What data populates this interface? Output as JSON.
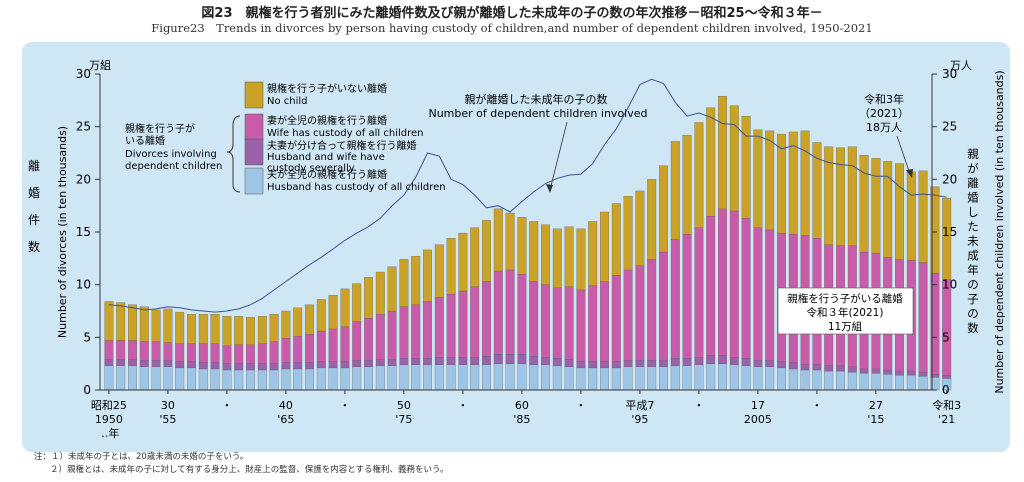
{
  "title_jp": "図23　親権を行う者別にみた離婚件数及び親が離婚した未成年の子の数の年次推移－昭和25～令和３年－",
  "title_en": "Figure23　Trends in divorces by person having custody of children,and number of dependent children involved, 1950-2021",
  "notes": [
    "注：１）未成年の子とは、20歳未満の未婚の子をいう。",
    "２）親権とは、未成年の子に対して有する身分上、財産上の監督、保護を内容とする権利、義務をいう。"
  ],
  "colors": {
    "no_child": "#c9a227",
    "wife": "#c85ca8",
    "both": "#9a62a8",
    "husband": "#9ec4e6",
    "line": "#3a5590",
    "panel": "#cfe6f4"
  },
  "chart_data": {
    "type": "bar",
    "stacked": true,
    "grid": false,
    "years": [
      1950,
      1951,
      1952,
      1953,
      1954,
      1955,
      1956,
      1957,
      1958,
      1959,
      1960,
      1961,
      1962,
      1963,
      1964,
      1965,
      1966,
      1967,
      1968,
      1969,
      1970,
      1971,
      1972,
      1973,
      1974,
      1975,
      1976,
      1977,
      1978,
      1979,
      1980,
      1981,
      1982,
      1983,
      1984,
      1985,
      1986,
      1987,
      1988,
      1989,
      1990,
      1991,
      1992,
      1993,
      1994,
      1995,
      1996,
      1997,
      1998,
      1999,
      2000,
      2001,
      2002,
      2003,
      2004,
      2005,
      2006,
      2007,
      2008,
      2009,
      2010,
      2011,
      2012,
      2013,
      2014,
      2015,
      2016,
      2017,
      2018,
      2019,
      2020,
      2021
    ],
    "ylim_left": [
      0,
      30
    ],
    "ylim_right": [
      0,
      30
    ],
    "y_ticks": [
      0,
      5,
      10,
      15,
      20,
      25,
      30
    ],
    "left_unit": "万組",
    "right_unit": "万人",
    "left_label_jp": "離婚件数",
    "left_label_en": "Number of divorces (in ten thousands)",
    "right_label_jp": "親が離婚した未成年の子の数",
    "right_label_en": "Number of dependent children involved (in ten thousands)",
    "x_ticks": [
      {
        "year": 1950,
        "jp": "昭和25",
        "en": "1950"
      },
      {
        "year": 1955,
        "jp": "30",
        "en": "'55"
      },
      {
        "year": 1960,
        "jp": "・",
        "en": ""
      },
      {
        "year": 1965,
        "jp": "40",
        "en": "'65"
      },
      {
        "year": 1970,
        "jp": "・",
        "en": ""
      },
      {
        "year": 1975,
        "jp": "50",
        "en": "'75"
      },
      {
        "year": 1980,
        "jp": "・",
        "en": ""
      },
      {
        "year": 1985,
        "jp": "60",
        "en": "'85"
      },
      {
        "year": 1990,
        "jp": "・",
        "en": ""
      },
      {
        "year": 1995,
        "jp": "平成7",
        "en": "'95"
      },
      {
        "year": 2000,
        "jp": "・",
        "en": ""
      },
      {
        "year": 2005,
        "jp": "17",
        "en": "2005"
      },
      {
        "year": 2010,
        "jp": "・",
        "en": ""
      },
      {
        "year": 2015,
        "jp": "27",
        "en": "'15"
      },
      {
        "year": 2021,
        "jp": "令和3",
        "en": "'21"
      }
    ],
    "x_unit_label": "‥年",
    "series": [
      {
        "name": "夫が全児の親権を行う離婚",
        "name_en": "Husband has custody of all children",
        "color_key": "husband",
        "values": [
          2.3,
          2.3,
          2.3,
          2.2,
          2.2,
          2.2,
          2.1,
          2.1,
          2.0,
          2.0,
          1.9,
          1.9,
          1.9,
          1.9,
          1.9,
          2.0,
          2.0,
          2.0,
          2.1,
          2.1,
          2.1,
          2.2,
          2.2,
          2.3,
          2.3,
          2.4,
          2.4,
          2.4,
          2.4,
          2.4,
          2.4,
          2.4,
          2.4,
          2.5,
          2.5,
          2.5,
          2.4,
          2.4,
          2.3,
          2.2,
          2.1,
          2.1,
          2.1,
          2.1,
          2.2,
          2.2,
          2.2,
          2.2,
          2.3,
          2.3,
          2.4,
          2.5,
          2.5,
          2.4,
          2.3,
          2.2,
          2.2,
          2.1,
          2.0,
          1.9,
          1.9,
          1.8,
          1.8,
          1.7,
          1.6,
          1.6,
          1.5,
          1.4,
          1.4,
          1.3,
          1.2,
          1.1
        ]
      },
      {
        "name": "夫妻が分け合って親権を行う離婚",
        "name_en": "Husband and wife have custody severally",
        "color_key": "both",
        "values": [
          0.6,
          0.6,
          0.6,
          0.6,
          0.6,
          0.6,
          0.6,
          0.6,
          0.6,
          0.6,
          0.6,
          0.6,
          0.6,
          0.6,
          0.6,
          0.6,
          0.6,
          0.6,
          0.6,
          0.6,
          0.6,
          0.6,
          0.6,
          0.6,
          0.6,
          0.6,
          0.6,
          0.6,
          0.7,
          0.7,
          0.7,
          0.7,
          0.8,
          0.9,
          0.9,
          0.9,
          0.8,
          0.7,
          0.7,
          0.7,
          0.6,
          0.6,
          0.6,
          0.6,
          0.6,
          0.6,
          0.6,
          0.6,
          0.7,
          0.7,
          0.7,
          0.8,
          0.8,
          0.7,
          0.7,
          0.6,
          0.6,
          0.6,
          0.6,
          0.5,
          0.5,
          0.5,
          0.5,
          0.5,
          0.4,
          0.4,
          0.4,
          0.4,
          0.4,
          0.4,
          0.3,
          0.3
        ]
      },
      {
        "name": "妻が全児の親権を行う離婚",
        "name_en": "Wife has custody of all children",
        "color_key": "wife",
        "values": [
          1.8,
          1.8,
          1.8,
          1.8,
          1.8,
          1.7,
          1.7,
          1.7,
          1.8,
          1.8,
          1.7,
          1.8,
          1.8,
          1.9,
          2.1,
          2.3,
          2.5,
          2.7,
          2.9,
          3.1,
          3.3,
          3.7,
          4.0,
          4.3,
          4.6,
          4.9,
          5.1,
          5.4,
          5.7,
          6.0,
          6.3,
          6.7,
          7.1,
          7.9,
          8.0,
          7.6,
          7.1,
          6.9,
          6.7,
          6.9,
          6.8,
          7.2,
          7.6,
          8.2,
          8.6,
          9.0,
          9.6,
          10.3,
          11.3,
          11.8,
          12.3,
          13.2,
          13.9,
          13.9,
          13.3,
          12.6,
          12.4,
          12.2,
          12.2,
          12.3,
          12.0,
          11.5,
          11.4,
          11.5,
          11.1,
          11.0,
          10.7,
          10.6,
          10.5,
          10.4,
          9.6,
          9.1
        ]
      },
      {
        "name": "親権を行う子がいない離婚",
        "name_en": "No child",
        "color_key": "no_child",
        "values": [
          3.7,
          3.6,
          3.4,
          3.3,
          3.0,
          3.2,
          3.0,
          2.8,
          2.8,
          2.8,
          2.8,
          2.7,
          2.6,
          2.6,
          2.6,
          2.6,
          2.7,
          2.8,
          3.0,
          3.2,
          3.6,
          3.6,
          3.9,
          4.0,
          4.2,
          4.5,
          4.6,
          4.9,
          5.0,
          5.3,
          5.5,
          5.6,
          5.8,
          5.9,
          5.4,
          5.4,
          5.7,
          5.7,
          5.6,
          5.7,
          5.8,
          6.1,
          6.6,
          6.8,
          7.0,
          7.1,
          7.6,
          8.2,
          9.3,
          9.4,
          10.0,
          10.3,
          10.7,
          10.0,
          9.7,
          9.3,
          9.4,
          9.4,
          9.7,
          9.9,
          9.1,
          9.3,
          9.3,
          9.4,
          9.2,
          9.0,
          9.1,
          9.1,
          8.4,
          8.7,
          8.2,
          7.7
        ]
      }
    ],
    "line_series": {
      "name": "親が離婚した未成年の子の数",
      "name_en": "Number of dependent children involved",
      "values": [
        8.1,
        8.0,
        7.8,
        7.6,
        7.7,
        7.9,
        7.8,
        7.6,
        7.5,
        7.4,
        7.5,
        7.7,
        8.1,
        8.7,
        9.5,
        10.3,
        11.1,
        11.9,
        12.6,
        13.4,
        14.2,
        14.9,
        15.5,
        16.3,
        17.5,
        18.5,
        20.2,
        22.5,
        22.2,
        20.0,
        19.5,
        18.5,
        17.3,
        17.5,
        16.9,
        17.9,
        18.8,
        19.6,
        20.1,
        20.4,
        20.5,
        21.5,
        23.3,
        24.8,
        26.8,
        29.0,
        29.5,
        29.1,
        27.3,
        26.0,
        26.3,
        25.9,
        25.3,
        25.2,
        24.1,
        24.1,
        23.7,
        22.9,
        23.2,
        22.7,
        22.0,
        21.6,
        21.4,
        21.3,
        20.6,
        20.3,
        20.3,
        19.3,
        18.5,
        18.6,
        18.5,
        18.3
      ]
    },
    "legend_group_jp": "親権を行う子がいる離婚",
    "legend_group_en": "Divorces involving dependent children",
    "annotations": {
      "line_label_jp": "親が離婚した未成年の子の数",
      "line_label_en": "Number of dependent children involved",
      "latest_children_jp": "令和3年",
      "latest_children_year": "（2021）",
      "latest_children_value": "18万人",
      "box_line1": "親権を行う子がいる離婚",
      "box_line2": "令和３年(2021)",
      "box_line3": "11万組"
    }
  }
}
